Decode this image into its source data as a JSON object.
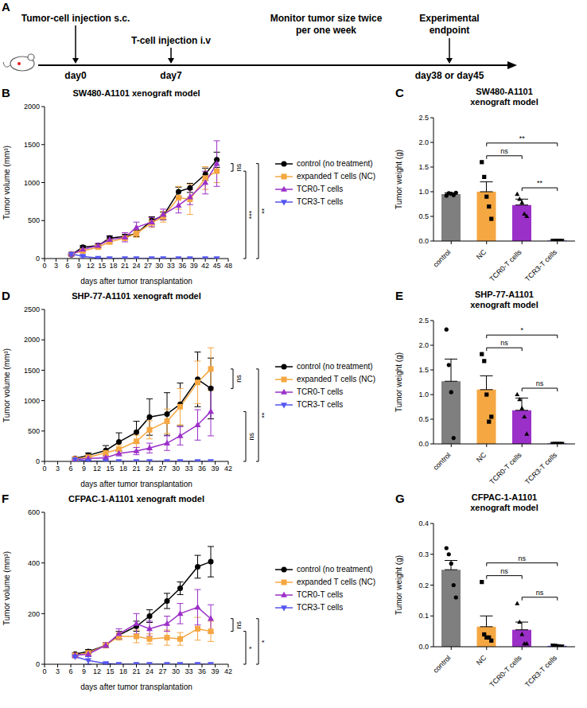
{
  "diagram": {
    "panel": "A",
    "steps": [
      {
        "label": "Tumor-cell injection s.c.",
        "day": "day0"
      },
      {
        "label": "T-cell injection i.v",
        "day": "day7"
      },
      {
        "label": "Monitor tumor size twice per one week"
      },
      {
        "label": "Experimental endpoint",
        "day": "day38 or day45"
      }
    ]
  },
  "chart_data": [
    {
      "panel": "B",
      "type": "line",
      "title": "SW480-A1101 xenograft model",
      "x_label": "days after tumor transplantation",
      "y_label": "Tumor volume (mm³)",
      "legend": "right",
      "x": [
        7,
        10,
        14,
        17,
        21,
        24,
        28,
        31,
        35,
        38,
        42,
        45
      ],
      "xlim": [
        0,
        48
      ],
      "xticks": [
        0,
        3,
        6,
        9,
        12,
        15,
        18,
        21,
        24,
        27,
        30,
        33,
        36,
        39,
        42,
        45,
        48
      ],
      "ylim": [
        0,
        2000
      ],
      "yticks": [
        0,
        500,
        1000,
        1500,
        2000
      ],
      "series": [
        {
          "name": "control (no treatment)",
          "color": "#000000",
          "marker": "circle",
          "values": [
            50,
            150,
            170,
            270,
            290,
            330,
            500,
            560,
            880,
            930,
            1110,
            1300
          ],
          "errors": [
            10,
            20,
            20,
            30,
            30,
            40,
            50,
            50,
            60,
            60,
            80,
            100
          ]
        },
        {
          "name": "expanded T cells (NC)",
          "color": "#F5A742",
          "marker": "square",
          "values": [
            60,
            100,
            150,
            220,
            270,
            330,
            470,
            550,
            800,
            780,
            1060,
            1150
          ],
          "errors": [
            10,
            20,
            20,
            30,
            30,
            50,
            60,
            70,
            150,
            200,
            150,
            150
          ]
        },
        {
          "name": "TCR0-T cells",
          "color": "#9B30C8",
          "marker": "triangle",
          "values": [
            55,
            120,
            170,
            250,
            280,
            410,
            480,
            580,
            700,
            810,
            1000,
            1250
          ],
          "errors": [
            10,
            20,
            30,
            40,
            60,
            70,
            60,
            70,
            100,
            100,
            150,
            300
          ]
        },
        {
          "name": "TCR3-T cells",
          "color": "#5555F0",
          "marker": "triangle-down",
          "values": [
            60,
            30,
            5,
            0,
            0,
            0,
            0,
            0,
            0,
            0,
            0,
            0
          ],
          "errors": [
            10,
            10,
            5,
            0,
            0,
            0,
            0,
            0,
            0,
            0,
            0,
            0
          ]
        }
      ],
      "annotations": [
        {
          "text": "ns",
          "between": [
            "expanded T cells (NC)",
            "TCR0-T cells"
          ]
        },
        {
          "text": "***",
          "between": [
            "expanded T cells (NC)",
            "TCR3-T cells"
          ]
        },
        {
          "text": "**",
          "between": [
            "TCR0-T cells",
            "TCR3-T cells"
          ]
        }
      ]
    },
    {
      "panel": "C",
      "type": "bar",
      "title": "SW480-A1101 xenograft model",
      "y_label": "Tumor weight (g)",
      "categories": [
        "control",
        "NC",
        "TCR0-T cells",
        "TCR3-T cells"
      ],
      "values": [
        0.95,
        1.0,
        0.73,
        0.01
      ],
      "errors": [
        0.03,
        0.2,
        0.12,
        0.005
      ],
      "points": [
        [
          0.92,
          0.97,
          0.96,
          0.93,
          0.98
        ],
        [
          1.6,
          1.3,
          0.9,
          0.7,
          0.45
        ],
        [
          0.95,
          0.85,
          0.78,
          0.55,
          0.5
        ],
        [
          0.01,
          0.01,
          0.01,
          0.01,
          0.01
        ]
      ],
      "colors": [
        "#7F7F7F",
        "#F5A742",
        "#9B30C8",
        "#5555F0"
      ],
      "ylim": [
        0,
        2.5
      ],
      "yticks": [
        {
          "value": 0,
          "label": "0.0"
        },
        0.5,
        {
          "value": 1,
          "label": "1.0"
        },
        1.5,
        {
          "value": 2,
          "label": "2.0"
        },
        2.5
      ],
      "annotations": [
        {
          "text": "ns",
          "between": [
            "NC",
            "TCR0-T cells"
          ]
        },
        {
          "text": "**",
          "between": [
            "TCR0-T cells",
            "TCR3-T cells"
          ]
        },
        {
          "text": "**",
          "between": [
            "NC",
            "TCR3-T cells"
          ]
        }
      ]
    },
    {
      "panel": "D",
      "type": "line",
      "title": "SHP-77-A1101 xenograft model",
      "x_label": "days after tumor transplantation",
      "y_label": "Tumor volume (mm³)",
      "legend": "right",
      "x": [
        7,
        10,
        14,
        17,
        21,
        24,
        28,
        31,
        35,
        38
      ],
      "xlim": [
        0,
        42
      ],
      "xticks": [
        0,
        3,
        6,
        9,
        12,
        15,
        18,
        21,
        24,
        27,
        30,
        33,
        36,
        39,
        42
      ],
      "ylim": [
        0,
        2500
      ],
      "yticks": [
        0,
        500,
        1000,
        1500,
        2000,
        2500
      ],
      "series": [
        {
          "name": "control (no treatment)",
          "color": "#000000",
          "marker": "circle",
          "values": [
            50,
            100,
            180,
            320,
            480,
            730,
            780,
            940,
            1350,
            1200
          ],
          "errors": [
            20,
            40,
            80,
            150,
            180,
            300,
            350,
            350,
            450,
            500
          ]
        },
        {
          "name": "expanded T cells (NC)",
          "color": "#F5A742",
          "marker": "square",
          "values": [
            40,
            70,
            140,
            200,
            330,
            520,
            660,
            900,
            1300,
            1520
          ],
          "errors": [
            10,
            20,
            40,
            70,
            100,
            150,
            200,
            300,
            350,
            350
          ]
        },
        {
          "name": "TCR0-T cells",
          "color": "#9B30C8",
          "marker": "triangle",
          "values": [
            30,
            50,
            60,
            130,
            170,
            220,
            300,
            420,
            600,
            820
          ],
          "errors": [
            10,
            15,
            20,
            40,
            60,
            80,
            120,
            150,
            250,
            400
          ]
        },
        {
          "name": "TCR3-T cells",
          "color": "#5555F0",
          "marker": "triangle-down",
          "values": [
            30,
            5,
            0,
            0,
            0,
            0,
            0,
            0,
            0,
            0
          ],
          "errors": [
            5,
            3,
            0,
            0,
            0,
            0,
            0,
            0,
            0,
            0
          ]
        }
      ],
      "annotations": [
        {
          "text": "ns",
          "between": [
            "control (no treatment)",
            "expanded T cells (NC)"
          ]
        },
        {
          "text": "ns",
          "between": [
            "TCR0-T cells",
            "TCR3-T cells"
          ]
        },
        {
          "text": "**",
          "between": [
            "expanded T cells (NC)",
            "TCR3-T cells"
          ]
        }
      ]
    },
    {
      "panel": "E",
      "type": "bar",
      "title": "SHP-77-A1101 xenograft model",
      "y_label": "Tumor weight (g)",
      "categories": [
        "control",
        "NC",
        "TCR0-T cells",
        "TCR3-T cells"
      ],
      "values": [
        1.27,
        1.1,
        0.68,
        0.01
      ],
      "errors": [
        0.45,
        0.28,
        0.25,
        0.005
      ],
      "points": [
        [
          2.32,
          1.6,
          1.05,
          0.12
        ],
        [
          1.82,
          1.68,
          1.0,
          0.45,
          0.55
        ],
        [
          1.0,
          0.9,
          0.72,
          0.55,
          0.2
        ],
        [
          0.005,
          0.005,
          0.005,
          0.005,
          0.005
        ]
      ],
      "colors": [
        "#7F7F7F",
        "#F5A742",
        "#9B30C8",
        "#5555F0"
      ],
      "ylim": [
        0,
        2.5
      ],
      "yticks": [
        {
          "value": 0,
          "label": "0.0"
        },
        0.5,
        {
          "value": 1,
          "label": "1.0"
        },
        1.5,
        {
          "value": 2,
          "label": "2.0"
        },
        2.5
      ],
      "annotations": [
        {
          "text": "ns",
          "between": [
            "NC",
            "TCR0-T cells"
          ]
        },
        {
          "text": "ns",
          "between": [
            "TCR0-T cells",
            "TCR3-T cells"
          ]
        },
        {
          "text": "*",
          "between": [
            "NC",
            "TCR3-T cells"
          ]
        }
      ]
    },
    {
      "panel": "F",
      "type": "line",
      "title": "CFPAC-1-A1101 xenograft model",
      "x_label": "days after tumor transplantation",
      "y_label": "Tumor volume (mm³)",
      "legend": "right",
      "x": [
        7,
        10,
        14,
        17,
        21,
        24,
        28,
        31,
        35,
        38
      ],
      "xlim": [
        0,
        42
      ],
      "xticks": [
        0,
        3,
        6,
        9,
        12,
        15,
        18,
        21,
        24,
        27,
        30,
        33,
        36,
        39,
        42
      ],
      "ylim": [
        0,
        600
      ],
      "yticks": [
        0,
        200,
        400,
        600
      ],
      "series": [
        {
          "name": "control (no treatment)",
          "color": "#000000",
          "marker": "circle",
          "values": [
            40,
            50,
            75,
            115,
            150,
            190,
            250,
            300,
            385,
            405
          ],
          "errors": [
            5,
            8,
            10,
            15,
            20,
            25,
            30,
            25,
            45,
            60
          ]
        },
        {
          "name": "expanded T cells (NC)",
          "color": "#F5A742",
          "marker": "square",
          "values": [
            35,
            45,
            75,
            110,
            110,
            100,
            105,
            100,
            140,
            130
          ],
          "errors": [
            5,
            8,
            10,
            15,
            25,
            20,
            30,
            25,
            45,
            40
          ]
        },
        {
          "name": "TCR0-T cells",
          "color": "#9B30C8",
          "marker": "triangle",
          "values": [
            35,
            40,
            75,
            120,
            160,
            140,
            160,
            200,
            225,
            180
          ],
          "errors": [
            5,
            8,
            10,
            20,
            40,
            30,
            30,
            40,
            70,
            55
          ]
        },
        {
          "name": "TCR3-T cells",
          "color": "#5555F0",
          "marker": "triangle-down",
          "values": [
            30,
            15,
            3,
            0,
            0,
            0,
            0,
            0,
            0,
            0
          ],
          "errors": [
            5,
            15,
            3,
            0,
            0,
            0,
            0,
            0,
            0,
            0
          ]
        }
      ],
      "annotations": [
        {
          "text": "ns",
          "between": [
            "expanded T cells (NC)",
            "TCR0-T cells"
          ]
        },
        {
          "text": "*",
          "between": [
            "expanded T cells (NC)",
            "TCR3-T cells"
          ]
        },
        {
          "text": "*",
          "between": [
            "TCR0-T cells",
            "TCR3-T cells"
          ]
        }
      ]
    },
    {
      "panel": "G",
      "type": "bar",
      "title": "CFPAC-1-A1101 xenograft model",
      "y_label": "Tumor weight (g)",
      "categories": [
        "control",
        "NC",
        "TCR0-T cells",
        "TCR3-T cells"
      ],
      "values": [
        0.25,
        0.065,
        0.055,
        0.003
      ],
      "errors": [
        0.03,
        0.035,
        0.025,
        0.001
      ],
      "points": [
        [
          0.32,
          0.3,
          0.27,
          0.2,
          0.16
        ],
        [
          0.21,
          0.04,
          0.03,
          0.03,
          0.02
        ],
        [
          0.14,
          0.08,
          0.04,
          0.01,
          0.01
        ],
        [
          0.005,
          0.004,
          0.003,
          0.002,
          0.002
        ]
      ],
      "colors": [
        "#7F7F7F",
        "#F5A742",
        "#9B30C8",
        "#5555F0"
      ],
      "ylim": [
        0,
        0.4
      ],
      "yticks": [
        {
          "value": 0,
          "label": "0.0"
        },
        0.1,
        0.2,
        0.3,
        0.4
      ],
      "annotations": [
        {
          "text": "ns",
          "between": [
            "NC",
            "TCR0-T cells"
          ]
        },
        {
          "text": "ns",
          "between": [
            "TCR0-T cells",
            "TCR3-T cells"
          ]
        },
        {
          "text": "ns",
          "between": [
            "NC",
            "TCR3-T cells"
          ]
        }
      ]
    }
  ]
}
